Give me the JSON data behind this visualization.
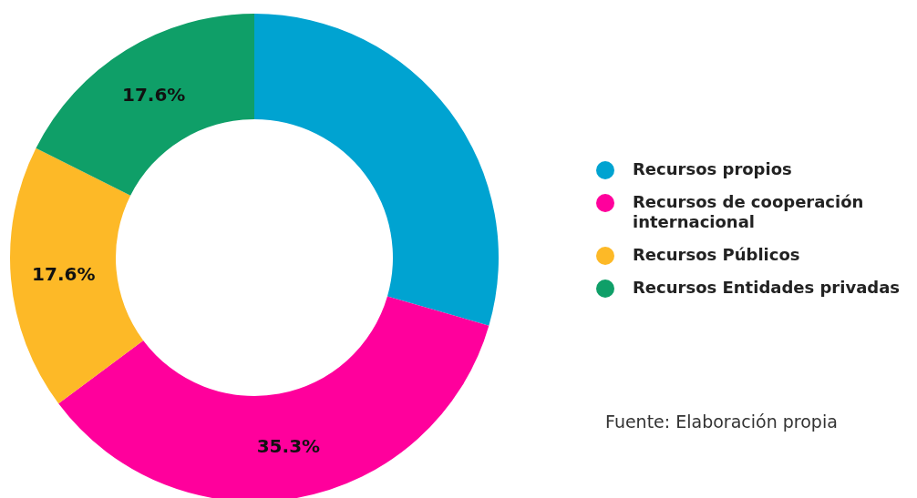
{
  "chart_data": {
    "type": "donut",
    "categories": [
      "Recursos propios",
      "Recursos de cooperación internacional",
      "Recursos Públicos",
      "Recursos Entidades privadas"
    ],
    "values": [
      29.5,
      35.3,
      17.6,
      17.6
    ],
    "colors": [
      "#00a3d1",
      "#ff009c",
      "#fdb927",
      "#0f9f68"
    ],
    "value_labels": [
      null,
      "35.3%",
      "17.6%",
      "17.6%"
    ],
    "legend": "right",
    "annotations": [
      "Fuente: Elaboración propia"
    ]
  }
}
